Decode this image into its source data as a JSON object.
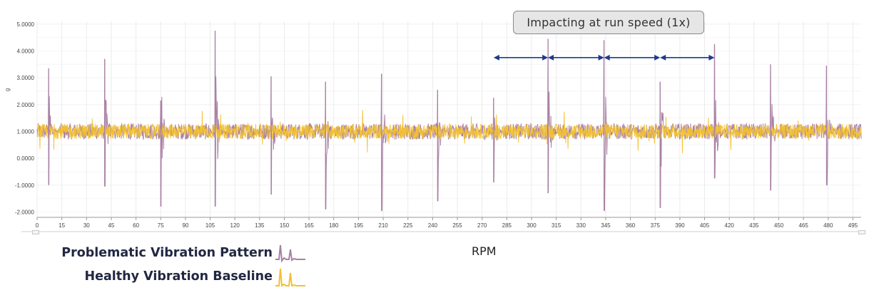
{
  "annotation": {
    "text": "Impacting at run speed (1x)"
  },
  "legend": {
    "problematic": {
      "label": "Problematic Vibration Pattern",
      "color": "#a981a5"
    },
    "healthy": {
      "label": "Healthy Vibration Baseline",
      "color": "#f3c12e"
    }
  },
  "rpm_label": "RPM",
  "arrow_color": "#1f3a8a",
  "chart_data": {
    "type": "line",
    "ylabel": "g",
    "xlabel": "",
    "xlim": [
      0,
      500
    ],
    "ylim": [
      -2.2,
      5.1
    ],
    "grid": true,
    "y_ticks": [
      "5.0000",
      "4.0000",
      "3.0000",
      "2.0000",
      "1.0000",
      "0.0000",
      "-1.0000",
      "-2.0000"
    ],
    "y_tick_values": [
      5,
      4,
      3,
      2,
      1,
      0,
      -1,
      -2
    ],
    "x_ticks": [
      "0",
      "15",
      "30",
      "45",
      "60",
      "75",
      "90",
      "105",
      "120",
      "135",
      "150",
      "165",
      "180",
      "195",
      "210",
      "225",
      "240",
      "255",
      "270",
      "285",
      "300",
      "315",
      "330",
      "345",
      "360",
      "375",
      "390",
      "405",
      "420",
      "435",
      "450",
      "465",
      "480",
      "495"
    ],
    "x_tick_values": [
      0,
      15,
      30,
      45,
      60,
      75,
      90,
      105,
      120,
      135,
      150,
      165,
      180,
      195,
      210,
      225,
      240,
      255,
      270,
      285,
      300,
      315,
      330,
      345,
      360,
      375,
      390,
      405,
      420,
      435,
      450,
      465,
      480,
      495
    ],
    "series": [
      {
        "name": "Problematic Vibration Pattern",
        "color": "#a981a5",
        "baseline": 1.0,
        "impacts": [
          {
            "x": 7,
            "peak": 3.35,
            "trough": -1.0
          },
          {
            "x": 41,
            "peak": 3.7,
            "trough": -1.05
          },
          {
            "x": 75,
            "peak": 2.15,
            "trough": -1.8
          },
          {
            "x": 108,
            "peak": 4.75,
            "trough": -1.8
          },
          {
            "x": 142,
            "peak": 3.05,
            "trough": -1.35
          },
          {
            "x": 175,
            "peak": 2.85,
            "trough": -1.9
          },
          {
            "x": 209,
            "peak": 3.15,
            "trough": -1.95
          },
          {
            "x": 243,
            "peak": 2.55,
            "trough": -1.6
          },
          {
            "x": 277,
            "peak": 2.25,
            "trough": -0.9
          },
          {
            "x": 310,
            "peak": 4.45,
            "trough": -1.3
          },
          {
            "x": 344,
            "peak": 4.4,
            "trough": -1.95
          },
          {
            "x": 378,
            "peak": 2.85,
            "trough": -1.85
          },
          {
            "x": 411,
            "peak": 4.25,
            "trough": -0.75
          },
          {
            "x": 445,
            "peak": 3.5,
            "trough": -1.2
          },
          {
            "x": 479,
            "peak": 3.45,
            "trough": -1.0
          }
        ]
      },
      {
        "name": "Healthy Vibration Baseline",
        "color": "#f3c12e",
        "baseline": 1.0,
        "range": [
          0.15,
          1.85
        ]
      }
    ],
    "arrows": [
      {
        "x1": 277,
        "x2": 310,
        "y": 3.75
      },
      {
        "x1": 310,
        "x2": 344,
        "y": 3.75
      },
      {
        "x1": 344,
        "x2": 378,
        "y": 3.75
      },
      {
        "x1": 378,
        "x2": 411,
        "y": 3.75
      }
    ]
  }
}
